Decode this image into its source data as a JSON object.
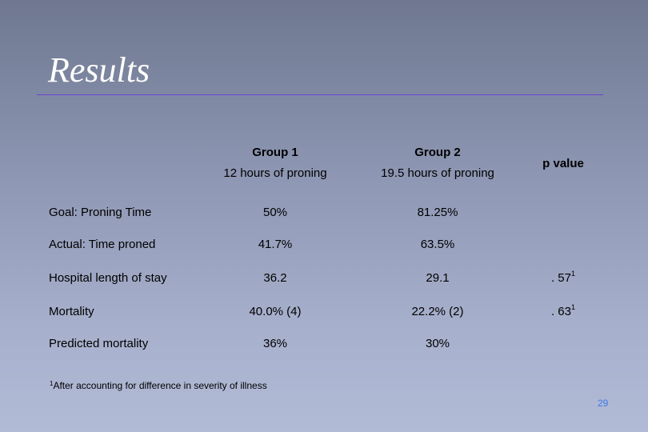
{
  "slide": {
    "title": "Results",
    "page_number": "29"
  },
  "table": {
    "group1": {
      "name": "Group 1",
      "subtitle": "12 hours of proning"
    },
    "group2": {
      "name": "Group 2",
      "subtitle": "19.5 hours of proning"
    },
    "pvalue_header": "p value",
    "rows": [
      {
        "label": "Goal: Proning Time",
        "g1": "50%",
        "g2": "81.25%",
        "p": "",
        "p_sup": ""
      },
      {
        "label": "Actual: Time proned",
        "g1": "41.7%",
        "g2": "63.5%",
        "p": "",
        "p_sup": ""
      },
      {
        "label": "Hospital length of stay",
        "g1": "36.2",
        "g2": "29.1",
        "p": ". 57",
        "p_sup": "1"
      },
      {
        "label": "Mortality",
        "g1": "40.0% (4)",
        "g2": "22.2% (2)",
        "p": ". 63",
        "p_sup": "1"
      },
      {
        "label": "Predicted mortality",
        "g1": "36%",
        "g2": "30%",
        "p": "",
        "p_sup": ""
      }
    ]
  },
  "footnote": {
    "marker": "1",
    "text": "After accounting for difference in severity of illness"
  }
}
